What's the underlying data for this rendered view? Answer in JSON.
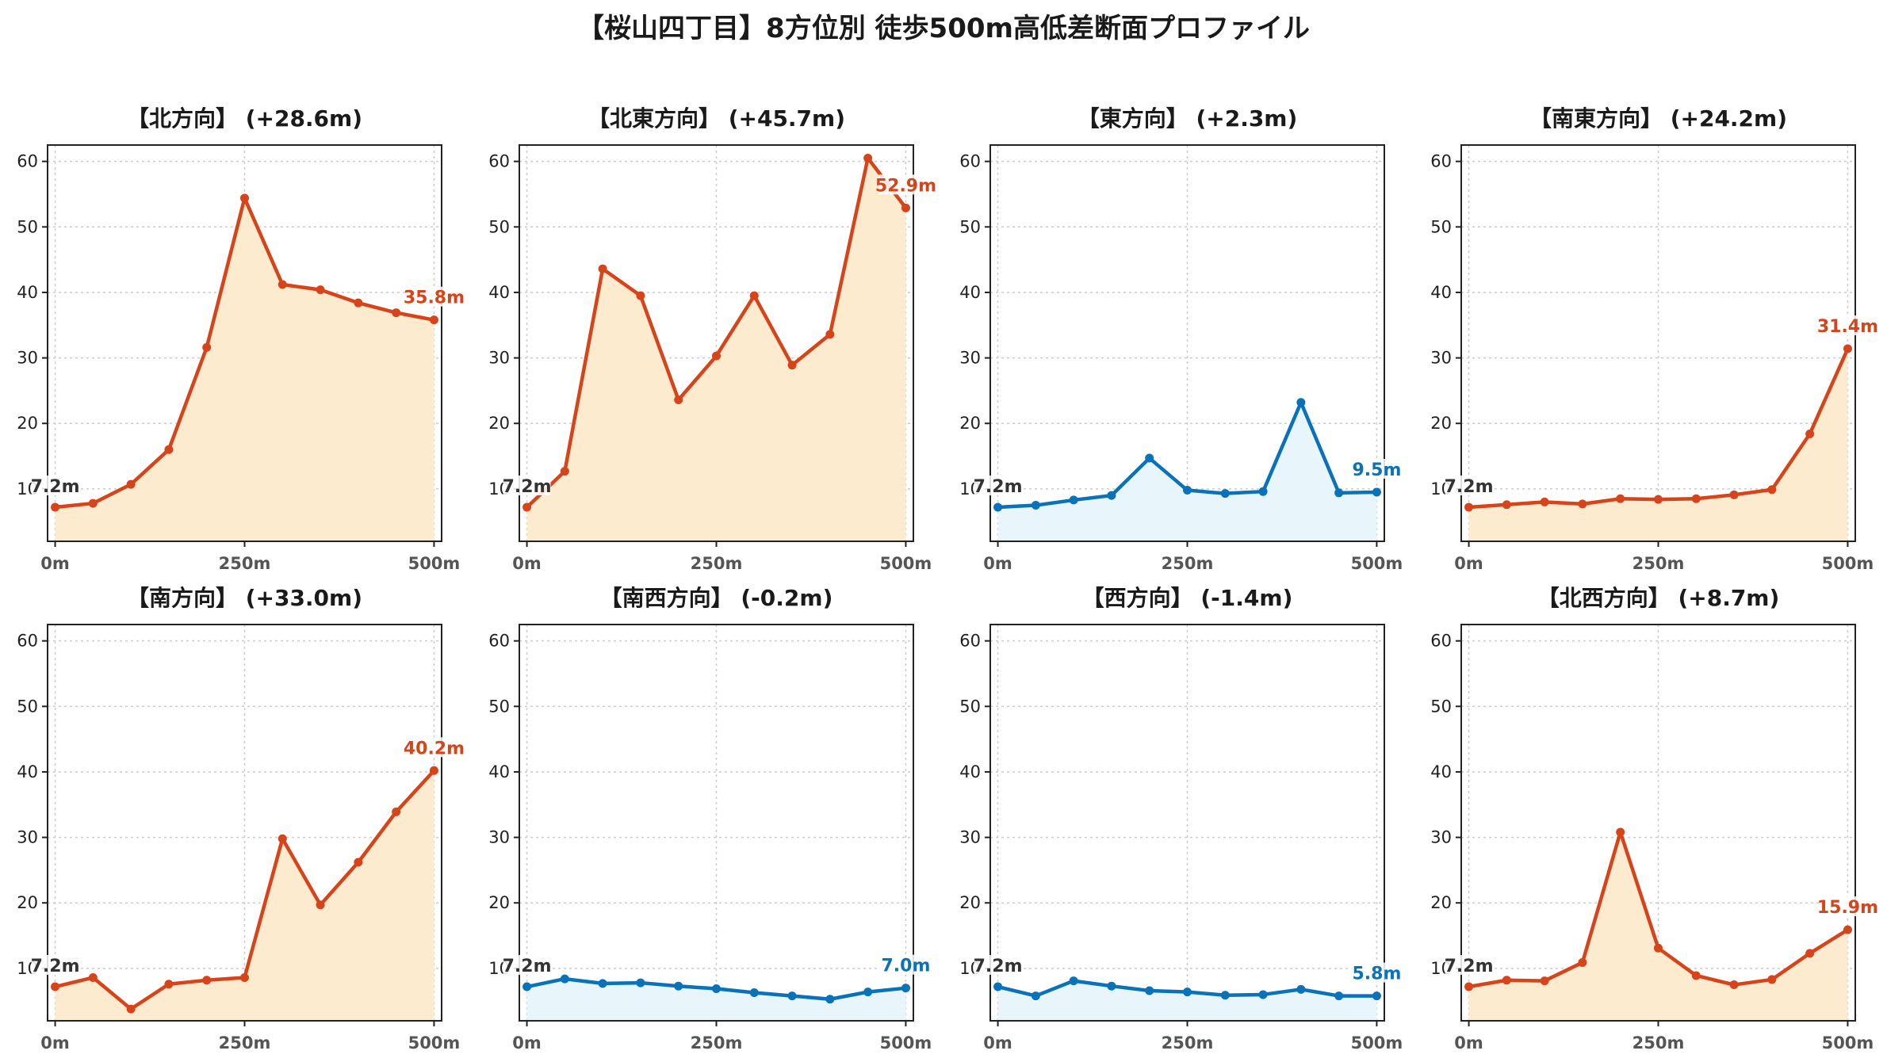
{
  "title": "【桜山四丁目】8方位別 徒歩500m高低差断面プロファイル",
  "colors": {
    "up_line": "#d7441a",
    "up_fill": "#fdebd0",
    "down_line": "#0a72b8",
    "down_fill": "#e8f6fc",
    "start_label": "#333333"
  },
  "chart_data": [
    {
      "type": "area",
      "title": "【北方向】 (+28.6m)",
      "trend": "up",
      "x": [
        0,
        50,
        100,
        150,
        200,
        250,
        300,
        350,
        400,
        450,
        500
      ],
      "y": [
        7.2,
        7.8,
        10.7,
        16.0,
        31.6,
        54.4,
        41.2,
        40.4,
        38.4,
        36.9,
        35.8
      ],
      "start_label": "7.2m",
      "end_label": "35.8m",
      "xticks": [
        "0m",
        "250m",
        "500m"
      ],
      "yticks": [
        10,
        20,
        30,
        40,
        50,
        60
      ],
      "ylim": [
        2,
        62.5
      ],
      "xlim": [
        -10,
        510
      ],
      "grid": true
    },
    {
      "type": "area",
      "title": "【北東方向】 (+45.7m)",
      "trend": "up",
      "x": [
        0,
        50,
        100,
        150,
        200,
        250,
        300,
        350,
        400,
        450,
        500
      ],
      "y": [
        7.2,
        12.7,
        43.6,
        39.5,
        23.6,
        30.3,
        39.5,
        28.9,
        33.6,
        60.5,
        52.9
      ],
      "start_label": "7.2m",
      "end_label": "52.9m",
      "xticks": [
        "0m",
        "250m",
        "500m"
      ],
      "yticks": [
        10,
        20,
        30,
        40,
        50,
        60
      ],
      "ylim": [
        2,
        62.5
      ],
      "xlim": [
        -10,
        510
      ],
      "grid": true
    },
    {
      "type": "area",
      "title": "【東方向】 (+2.3m)",
      "trend": "down",
      "x": [
        0,
        50,
        100,
        150,
        200,
        250,
        300,
        350,
        400,
        450,
        500
      ],
      "y": [
        7.2,
        7.5,
        8.3,
        9.0,
        14.7,
        9.8,
        9.3,
        9.6,
        23.2,
        9.4,
        9.5
      ],
      "start_label": "7.2m",
      "end_label": "9.5m",
      "xticks": [
        "0m",
        "250m",
        "500m"
      ],
      "yticks": [
        10,
        20,
        30,
        40,
        50,
        60
      ],
      "ylim": [
        2,
        62.5
      ],
      "xlim": [
        -10,
        510
      ],
      "grid": true
    },
    {
      "type": "area",
      "title": "【南東方向】 (+24.2m)",
      "trend": "up",
      "x": [
        0,
        50,
        100,
        150,
        200,
        250,
        300,
        350,
        400,
        450,
        500
      ],
      "y": [
        7.2,
        7.6,
        8.0,
        7.7,
        8.5,
        8.4,
        8.5,
        9.1,
        9.9,
        18.4,
        31.4
      ],
      "start_label": "7.2m",
      "end_label": "31.4m",
      "xticks": [
        "0m",
        "250m",
        "500m"
      ],
      "yticks": [
        10,
        20,
        30,
        40,
        50,
        60
      ],
      "ylim": [
        2,
        62.5
      ],
      "xlim": [
        -10,
        510
      ],
      "grid": true
    },
    {
      "type": "area",
      "title": "【南方向】 (+33.0m)",
      "trend": "up",
      "x": [
        0,
        50,
        100,
        150,
        200,
        250,
        300,
        350,
        400,
        450,
        500
      ],
      "y": [
        7.2,
        8.6,
        3.8,
        7.6,
        8.2,
        8.6,
        29.8,
        19.7,
        26.2,
        33.9,
        40.2
      ],
      "start_label": "7.2m",
      "end_label": "40.2m",
      "xticks": [
        "0m",
        "250m",
        "500m"
      ],
      "yticks": [
        10,
        20,
        30,
        40,
        50,
        60
      ],
      "ylim": [
        2,
        62.5
      ],
      "xlim": [
        -10,
        510
      ],
      "grid": true
    },
    {
      "type": "area",
      "title": "【南西方向】 (-0.2m)",
      "trend": "down",
      "x": [
        0,
        50,
        100,
        150,
        200,
        250,
        300,
        350,
        400,
        450,
        500
      ],
      "y": [
        7.2,
        8.4,
        7.7,
        7.8,
        7.3,
        6.9,
        6.3,
        5.8,
        5.3,
        6.4,
        7.0
      ],
      "start_label": "7.2m",
      "end_label": "7.0m",
      "xticks": [
        "0m",
        "250m",
        "500m"
      ],
      "yticks": [
        10,
        20,
        30,
        40,
        50,
        60
      ],
      "ylim": [
        2,
        62.5
      ],
      "xlim": [
        -10,
        510
      ],
      "grid": true
    },
    {
      "type": "area",
      "title": "【西方向】 (-1.4m)",
      "trend": "down",
      "x": [
        0,
        50,
        100,
        150,
        200,
        250,
        300,
        350,
        400,
        450,
        500
      ],
      "y": [
        7.2,
        5.8,
        8.1,
        7.3,
        6.6,
        6.4,
        5.9,
        6.0,
        6.8,
        5.8,
        5.8
      ],
      "start_label": "7.2m",
      "end_label": "5.8m",
      "xticks": [
        "0m",
        "250m",
        "500m"
      ],
      "yticks": [
        10,
        20,
        30,
        40,
        50,
        60
      ],
      "ylim": [
        2,
        62.5
      ],
      "xlim": [
        -10,
        510
      ],
      "grid": true
    },
    {
      "type": "area",
      "title": "【北西方向】 (+8.7m)",
      "trend": "up",
      "x": [
        0,
        50,
        100,
        150,
        200,
        250,
        300,
        350,
        400,
        450,
        500
      ],
      "y": [
        7.2,
        8.2,
        8.1,
        10.9,
        30.8,
        13.1,
        8.9,
        7.5,
        8.3,
        12.3,
        15.9
      ],
      "start_label": "7.2m",
      "end_label": "15.9m",
      "xticks": [
        "0m",
        "250m",
        "500m"
      ],
      "yticks": [
        10,
        20,
        30,
        40,
        50,
        60
      ],
      "ylim": [
        2,
        62.5
      ],
      "xlim": [
        -10,
        510
      ],
      "grid": true
    }
  ]
}
